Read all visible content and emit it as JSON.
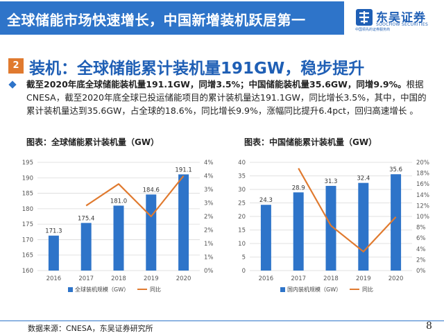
{
  "header": {
    "title": "全球储能市场快速增长，中国新增装机跃居第一",
    "logo_name": "东吴证券",
    "logo_en": "SOOCHOW SECURITIES",
    "logo_small": "中国领先的证券服务商",
    "colors": {
      "bar": "#2e74c9",
      "accent": "#e07a2f"
    }
  },
  "section": {
    "number": "2",
    "title": "装机：全球储能累计装机量191GW，稳步提升"
  },
  "body": {
    "bold_lead": "截至2020年底全球储能装机量191.1GW，同增3.5%；中国储能装机量35.6GW，同增9.9%。",
    "text": "根据CNESA，截至2020年底全球已投运储能项目的累计装机量达191.1GW，同比增长3.5%，其中，中国的累计装机量达到35.6GW，占全球的18.6%，同比增长9.9%，涨幅同比提升6.4pct，回归高速增长 。"
  },
  "chart_data": [
    {
      "type": "bar",
      "title": "图表：全球储能累计装机量（GW）",
      "categories": [
        "2016",
        "2017",
        "2018",
        "2019",
        "2020"
      ],
      "series": [
        {
          "name": "全球装机规模（GW）",
          "type": "bar",
          "axis": "left",
          "values": [
            171.3,
            175.4,
            181.0,
            184.6,
            191.1
          ],
          "labels": [
            "171.3",
            "175.4",
            "181.0",
            "184.6",
            "191.1"
          ]
        },
        {
          "name": "同比",
          "type": "line",
          "axis": "right",
          "values": [
            null,
            2.4,
            3.2,
            2.0,
            3.5
          ]
        }
      ],
      "ylim": [
        160,
        195
      ],
      "yticks": [
        160,
        165,
        170,
        175,
        180,
        185,
        190,
        195
      ],
      "y2lim": [
        0,
        4
      ],
      "y2ticks": [
        "0%",
        "1%",
        "1%",
        "2%",
        "2%",
        "3%",
        "3%",
        "4%",
        "4%"
      ],
      "legend": "bottom",
      "grid": true
    },
    {
      "type": "bar",
      "title": "图表：中国储能累计装机量（GW）",
      "categories": [
        "2016",
        "2017",
        "2018",
        "2019",
        "2020"
      ],
      "series": [
        {
          "name": "国内装机规模（GW）",
          "type": "bar",
          "axis": "left",
          "values": [
            24.3,
            28.9,
            31.3,
            32.4,
            35.6
          ],
          "labels": [
            "24.3",
            "28.9",
            "31.3",
            "32.4",
            "35.6"
          ]
        },
        {
          "name": "同比",
          "type": "line",
          "axis": "right",
          "values": [
            null,
            18.9,
            8.3,
            3.5,
            9.9
          ]
        }
      ],
      "ylim": [
        0,
        40
      ],
      "yticks": [
        0,
        5,
        10,
        15,
        20,
        25,
        30,
        35,
        40
      ],
      "y2lim": [
        0,
        20
      ],
      "y2ticks": [
        "0%",
        "2%",
        "4%",
        "6%",
        "8%",
        "10%",
        "12%",
        "14%",
        "16%",
        "18%",
        "20%"
      ],
      "legend": "bottom",
      "grid": true
    }
  ],
  "footer": {
    "source": "数据来源：CNESA，东吴证券研究所",
    "page": "8"
  }
}
